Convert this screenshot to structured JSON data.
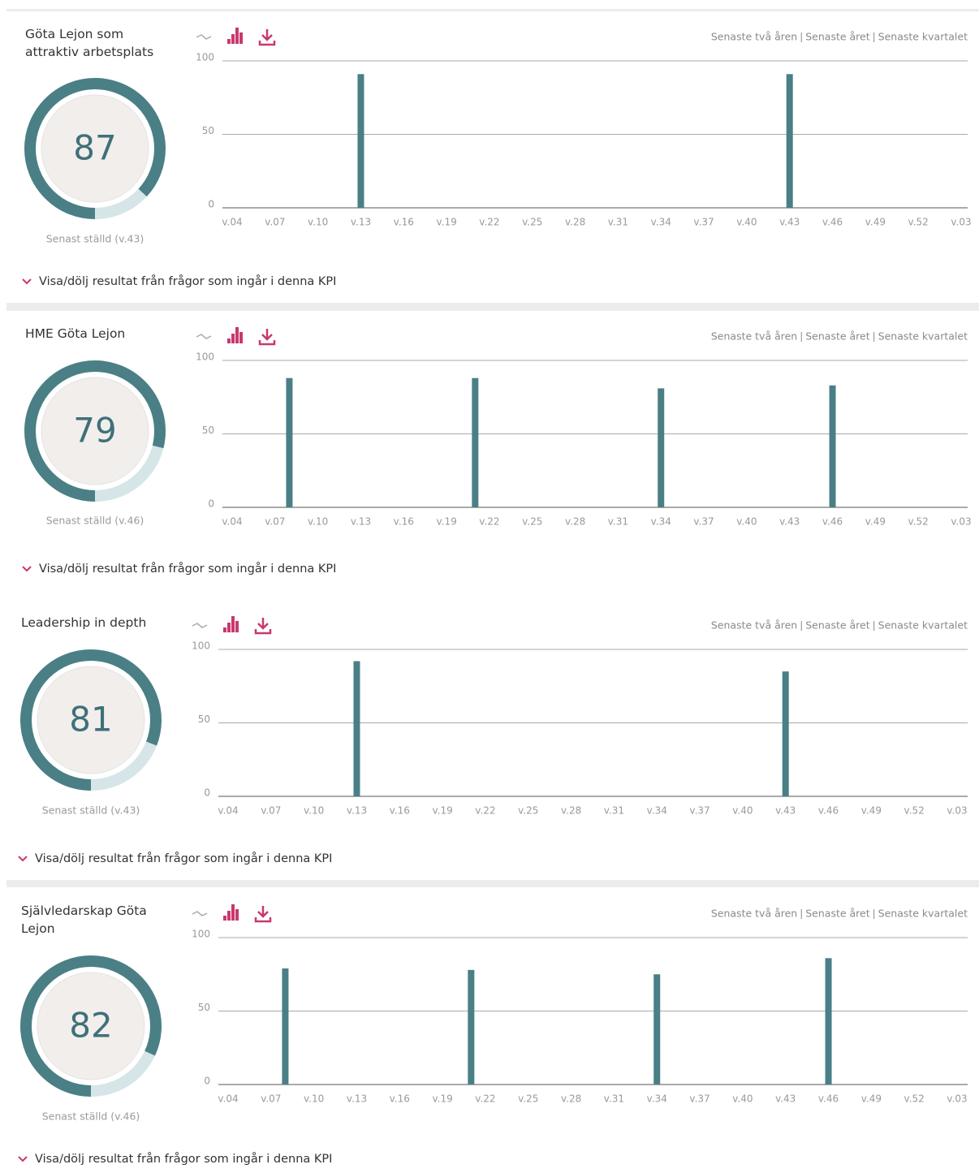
{
  "panels": [
    {
      "score": 87,
      "last_asked": "Senast ställd (v.43)",
      "toggle": "Visa/dölj resultat från frågor som ingår i denna KPI",
      "periods": [
        "Senaste två åren",
        "Senaste året",
        "Senaste kvartalet"
      ]
    },
    {
      "score": 79,
      "last_asked": "Senast ställd (v.46)",
      "toggle": "Visa/dölj resultat från frågor som ingår i denna KPI",
      "periods": [
        "Senaste två åren",
        "Senaste året",
        "Senaste kvartalet"
      ]
    },
    {
      "score": 81,
      "last_asked": "Senast ställd (v.43)",
      "toggle": "Visa/dölj resultat från frågor som ingår i denna KPI",
      "periods": [
        "Senaste två åren",
        "Senaste året",
        "Senaste kvartalet"
      ]
    },
    {
      "score": 82,
      "last_asked": "Senast ställd (v.46)",
      "toggle": "Visa/dölj resultat från frågor som ingår i denna KPI",
      "periods": [
        "Senaste två åren",
        "Senaste året",
        "Senaste kvartalet"
      ]
    }
  ],
  "chart_data": [
    {
      "type": "bar",
      "title": "Göta Lejon som attraktiv arbetsplats",
      "color": "#4a7f86",
      "ylim": [
        0,
        100
      ],
      "yticks": [
        0,
        50,
        100
      ],
      "grid": true,
      "categories": [
        "v.04",
        null,
        null,
        "v.07",
        null,
        null,
        "v.10",
        null,
        null,
        "v.13",
        null,
        null,
        "v.16",
        null,
        null,
        "v.19",
        null,
        null,
        "v.22",
        null,
        null,
        "v.25",
        null,
        null,
        "v.28",
        null,
        null,
        "v.31",
        null,
        null,
        "v.34",
        null,
        null,
        "v.37",
        null,
        null,
        "v.40",
        null,
        null,
        "v.43",
        null,
        null,
        "v.46",
        null,
        null,
        "v.49",
        null,
        null,
        "v.52",
        null,
        null,
        "v.03"
      ],
      "values": [
        null,
        null,
        null,
        null,
        null,
        null,
        null,
        null,
        null,
        91,
        null,
        null,
        null,
        null,
        null,
        null,
        null,
        null,
        null,
        null,
        null,
        null,
        null,
        null,
        null,
        null,
        null,
        null,
        null,
        null,
        null,
        null,
        null,
        null,
        null,
        null,
        null,
        null,
        null,
        91,
        null,
        null,
        null,
        null,
        null,
        null,
        null,
        null,
        null,
        null,
        null,
        null
      ]
    },
    {
      "type": "bar",
      "title": "HME Göta Lejon",
      "color": "#4a7f86",
      "ylim": [
        0,
        100
      ],
      "yticks": [
        0,
        50,
        100
      ],
      "grid": true,
      "categories": [
        "v.04",
        null,
        null,
        "v.07",
        null,
        null,
        "v.10",
        null,
        null,
        "v.13",
        null,
        null,
        "v.16",
        null,
        null,
        "v.19",
        null,
        null,
        "v.22",
        null,
        null,
        "v.25",
        null,
        null,
        "v.28",
        null,
        null,
        "v.31",
        null,
        null,
        "v.34",
        null,
        null,
        "v.37",
        null,
        null,
        "v.40",
        null,
        null,
        "v.43",
        null,
        null,
        "v.46",
        null,
        null,
        "v.49",
        null,
        null,
        "v.52",
        null,
        null,
        "v.03"
      ],
      "values": [
        null,
        null,
        null,
        null,
        88,
        null,
        null,
        null,
        null,
        null,
        null,
        null,
        null,
        null,
        null,
        null,
        null,
        88,
        null,
        null,
        null,
        null,
        null,
        null,
        null,
        null,
        null,
        null,
        null,
        null,
        81,
        null,
        null,
        null,
        null,
        null,
        null,
        null,
        null,
        null,
        null,
        null,
        83,
        null,
        null,
        null,
        null,
        null,
        null,
        null,
        null,
        null
      ]
    },
    {
      "type": "bar",
      "title": "Leadership in depth",
      "color": "#4a7f86",
      "ylim": [
        0,
        100
      ],
      "yticks": [
        0,
        50,
        100
      ],
      "grid": true,
      "categories": [
        "v.04",
        null,
        null,
        "v.07",
        null,
        null,
        "v.10",
        null,
        null,
        "v.13",
        null,
        null,
        "v.16",
        null,
        null,
        "v.19",
        null,
        null,
        "v.22",
        null,
        null,
        "v.25",
        null,
        null,
        "v.28",
        null,
        null,
        "v.31",
        null,
        null,
        "v.34",
        null,
        null,
        "v.37",
        null,
        null,
        "v.40",
        null,
        null,
        "v.43",
        null,
        null,
        "v.46",
        null,
        null,
        "v.49",
        null,
        null,
        "v.52",
        null,
        null,
        "v.03"
      ],
      "values": [
        null,
        null,
        null,
        null,
        null,
        null,
        null,
        null,
        null,
        92,
        null,
        null,
        null,
        null,
        null,
        null,
        null,
        null,
        null,
        null,
        null,
        null,
        null,
        null,
        null,
        null,
        null,
        null,
        null,
        null,
        null,
        null,
        null,
        null,
        null,
        null,
        null,
        null,
        null,
        85,
        null,
        null,
        null,
        null,
        null,
        null,
        null,
        null,
        null,
        null,
        null,
        null
      ]
    },
    {
      "type": "bar",
      "title": "Självledarskap Göta Lejon",
      "color": "#4a7f86",
      "ylim": [
        0,
        100
      ],
      "yticks": [
        0,
        50,
        100
      ],
      "grid": true,
      "categories": [
        "v.04",
        null,
        null,
        "v.07",
        null,
        null,
        "v.10",
        null,
        null,
        "v.13",
        null,
        null,
        "v.16",
        null,
        null,
        "v.19",
        null,
        null,
        "v.22",
        null,
        null,
        "v.25",
        null,
        null,
        "v.28",
        null,
        null,
        "v.31",
        null,
        null,
        "v.34",
        null,
        null,
        "v.37",
        null,
        null,
        "v.40",
        null,
        null,
        "v.43",
        null,
        null,
        "v.46",
        null,
        null,
        "v.49",
        null,
        null,
        "v.52",
        null,
        null,
        "v.03"
      ],
      "values": [
        null,
        null,
        null,
        null,
        79,
        null,
        null,
        null,
        null,
        null,
        null,
        null,
        null,
        null,
        null,
        null,
        null,
        78,
        null,
        null,
        null,
        null,
        null,
        null,
        null,
        null,
        null,
        null,
        null,
        null,
        75,
        null,
        null,
        null,
        null,
        null,
        null,
        null,
        null,
        null,
        null,
        null,
        86,
        null,
        null,
        null,
        null,
        null,
        null,
        null,
        null,
        null
      ]
    }
  ]
}
